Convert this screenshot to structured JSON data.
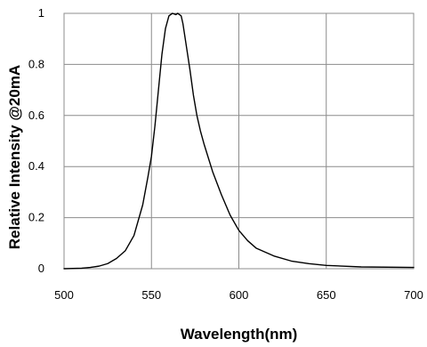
{
  "chart_data": {
    "type": "line",
    "title": "",
    "xlabel": "Wavelength(nm)",
    "ylabel": "Relative Intensity @20mA",
    "xlim": [
      500,
      700
    ],
    "ylim": [
      0,
      1
    ],
    "x_ticks": [
      "500",
      "550",
      "600",
      "650",
      "700"
    ],
    "y_ticks": [
      "0",
      "0.2",
      "0.4",
      "0.6",
      "0.8",
      "1"
    ],
    "grid": true,
    "legend": "none",
    "line_color": "#000000",
    "grid_color": "#8c8c8c",
    "series": [
      {
        "x": [
          500,
          510,
          515,
          520,
          525,
          530,
          535,
          540,
          545,
          548,
          550,
          552,
          554,
          556,
          558,
          560,
          562,
          564,
          565,
          566,
          567,
          568,
          570,
          572,
          574,
          576,
          578,
          580,
          585,
          590,
          595,
          600,
          605,
          610,
          620,
          630,
          640,
          650,
          670,
          700
        ],
        "y": [
          0.0,
          0.002,
          0.005,
          0.01,
          0.02,
          0.04,
          0.07,
          0.13,
          0.25,
          0.36,
          0.44,
          0.56,
          0.7,
          0.84,
          0.94,
          0.99,
          1.0,
          0.995,
          1.0,
          0.995,
          0.99,
          0.96,
          0.87,
          0.78,
          0.68,
          0.6,
          0.54,
          0.49,
          0.38,
          0.29,
          0.21,
          0.15,
          0.11,
          0.08,
          0.05,
          0.03,
          0.02,
          0.013,
          0.007,
          0.005
        ]
      }
    ]
  }
}
